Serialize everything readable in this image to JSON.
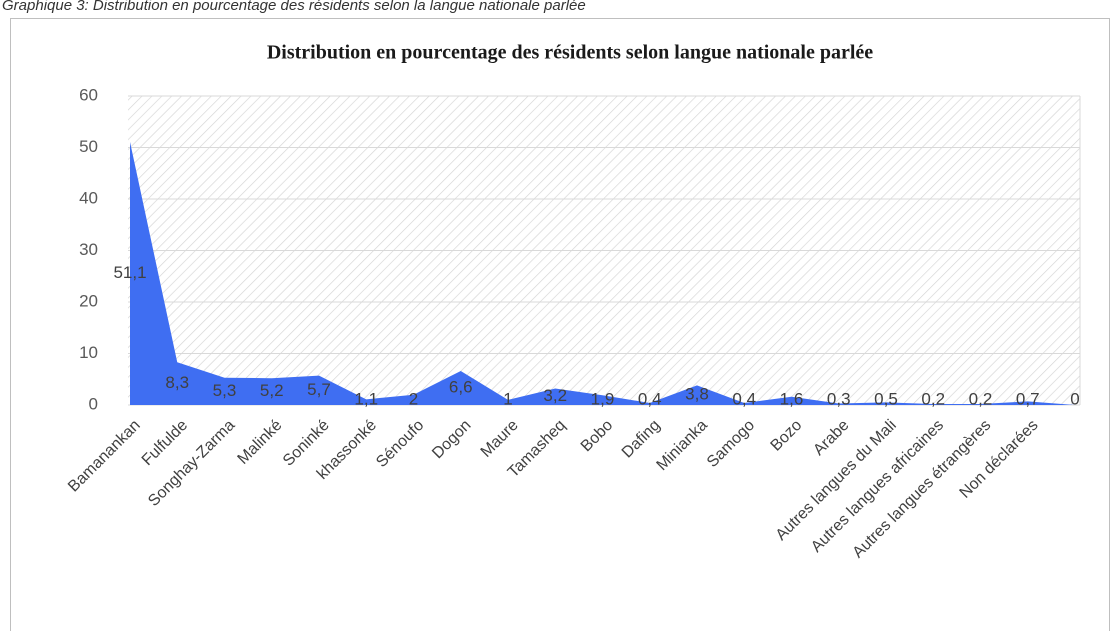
{
  "caption": "Graphique 3: Distribution en pourcentage des résidents selon la langue nationale parlée",
  "chart_data": {
    "type": "area",
    "title": "Distribution en pourcentage des résidents selon langue nationale parlée",
    "categories": [
      "Bamanankan",
      "Fulfulde",
      "Songhay-Zarma",
      "Malinké",
      "Soninké",
      "khassonké",
      "Sénoufo",
      "Dogon",
      "Maure",
      "Tamasheq",
      "Bobo",
      "Dafing",
      "Minianka",
      "Samogo",
      "Bozo",
      "Arabe",
      "Autres langues du Mali",
      "Autres langues africaines",
      "Autres langues étrangères",
      "Non déclarées",
      null
    ],
    "values": [
      51.1,
      8.3,
      5.3,
      5.2,
      5.7,
      1.1,
      2,
      6.6,
      1,
      3.2,
      1.9,
      0.4,
      3.8,
      0.4,
      1.6,
      0.3,
      0.5,
      0.2,
      0.2,
      0.7,
      0
    ],
    "value_labels": [
      "51,1",
      "8,3",
      "5,3",
      "5,2",
      "5,7",
      "1,1",
      "2",
      "6,6",
      "1",
      "3,2",
      "1,9",
      "0,4",
      "3,8",
      "0,4",
      "1,6",
      "0,3",
      "0,5",
      "0,2",
      "0,2",
      "0,7",
      "0"
    ],
    "color": "#3f6ef2",
    "ylim": [
      0,
      60
    ],
    "yticks": [
      0,
      10,
      20,
      30,
      40,
      50,
      60
    ],
    "grid": true
  }
}
